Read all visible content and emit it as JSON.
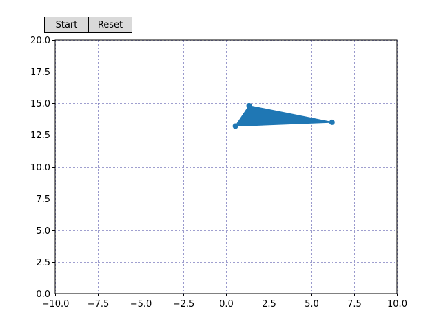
{
  "toolbar": {
    "start_label": "Start",
    "reset_label": "Reset"
  },
  "colors": {
    "series": "#1f77b4",
    "grid": "#8080c0",
    "button_bg": "#d9d9d9"
  },
  "chart_data": {
    "type": "scatter",
    "title": "",
    "xlabel": "",
    "ylabel": "",
    "xlim": [
      -10,
      10
    ],
    "ylim": [
      0,
      20
    ],
    "x_ticks": [
      "−10.0",
      "−7.5",
      "−5.0",
      "−2.5",
      "0.0",
      "2.5",
      "5.0",
      "7.5",
      "10.0"
    ],
    "x_tick_values": [
      -10,
      -7.5,
      -5,
      -2.5,
      0,
      2.5,
      5,
      7.5,
      10
    ],
    "y_ticks": [
      "0.0",
      "2.5",
      "5.0",
      "7.5",
      "10.0",
      "12.5",
      "15.0",
      "17.5",
      "20.0"
    ],
    "y_tick_values": [
      0,
      2.5,
      5,
      7.5,
      10,
      12.5,
      15,
      17.5,
      20
    ],
    "grid": true,
    "legend": "none",
    "series": [
      {
        "points": [
          {
            "x": 0.55,
            "y": 13.2
          },
          {
            "x": 1.35,
            "y": 14.8
          },
          {
            "x": 6.2,
            "y": 13.5
          }
        ],
        "filled_polygon": true
      }
    ]
  }
}
